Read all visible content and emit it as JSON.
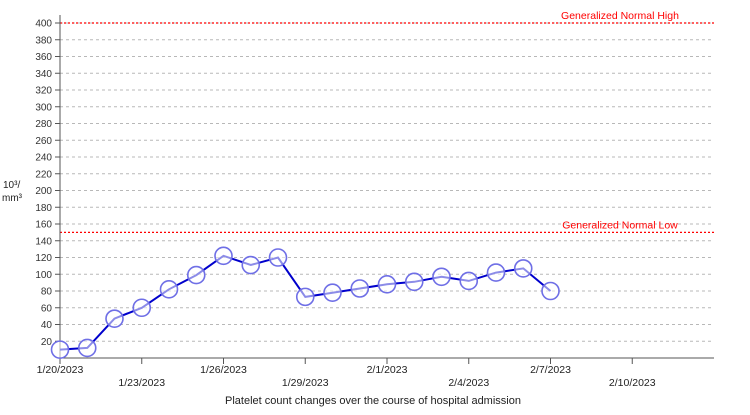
{
  "chart_data": {
    "type": "line",
    "title": "",
    "caption": "Platelet count changes over the course of hospital admission",
    "ylabel_line1": "10³/",
    "ylabel_line2": "mm³",
    "ylim": [
      0,
      400
    ],
    "yticks": [
      20,
      40,
      60,
      80,
      100,
      120,
      140,
      160,
      180,
      200,
      220,
      240,
      260,
      280,
      300,
      320,
      340,
      360,
      380,
      400
    ],
    "xlim": [
      "1/20/2023",
      "2/13/2023"
    ],
    "xticks": [
      {
        "date": "1/20/2023",
        "label": "1/20/2023",
        "row": 0
      },
      {
        "date": "1/23/2023",
        "label": "1/23/2023",
        "row": 1
      },
      {
        "date": "1/26/2023",
        "label": "1/26/2023",
        "row": 0
      },
      {
        "date": "1/29/2023",
        "label": "1/29/2023",
        "row": 1
      },
      {
        "date": "2/1/2023",
        "label": "2/1/2023",
        "row": 0
      },
      {
        "date": "2/4/2023",
        "label": "2/4/2023",
        "row": 1
      },
      {
        "date": "2/7/2023",
        "label": "2/7/2023",
        "row": 0
      },
      {
        "date": "2/10/2023",
        "label": "2/10/2023",
        "row": 1
      }
    ],
    "reference_lines": [
      {
        "label": "Generalized Normal High",
        "value": 400,
        "color": "#ff0000"
      },
      {
        "label": "Generalized Normal Low",
        "value": 150,
        "color": "#ff0000"
      }
    ],
    "series": [
      {
        "color": "#0000cc",
        "points": [
          {
            "x": "1/20/2023",
            "y": 10
          },
          {
            "x": "1/21/2023",
            "y": 12
          },
          {
            "x": "1/22/2023",
            "y": 47
          },
          {
            "x": "1/23/2023",
            "y": 60
          },
          {
            "x": "1/24/2023",
            "y": 82
          },
          {
            "x": "1/25/2023",
            "y": 99
          },
          {
            "x": "1/26/2023",
            "y": 122
          },
          {
            "x": "1/27/2023",
            "y": 111
          },
          {
            "x": "1/28/2023",
            "y": 120
          },
          {
            "x": "1/29/2023",
            "y": 73
          },
          {
            "x": "1/30/2023",
            "y": 78
          },
          {
            "x": "1/31/2023",
            "y": 83
          },
          {
            "x": "2/1/2023",
            "y": 88
          },
          {
            "x": "2/2/2023",
            "y": 91
          },
          {
            "x": "2/3/2023",
            "y": 97
          },
          {
            "x": "2/4/2023",
            "y": 92
          },
          {
            "x": "2/5/2023",
            "y": 102
          },
          {
            "x": "2/6/2023",
            "y": 107
          },
          {
            "x": "2/7/2023",
            "y": 80
          }
        ]
      }
    ],
    "grid": true,
    "legend": "none"
  }
}
